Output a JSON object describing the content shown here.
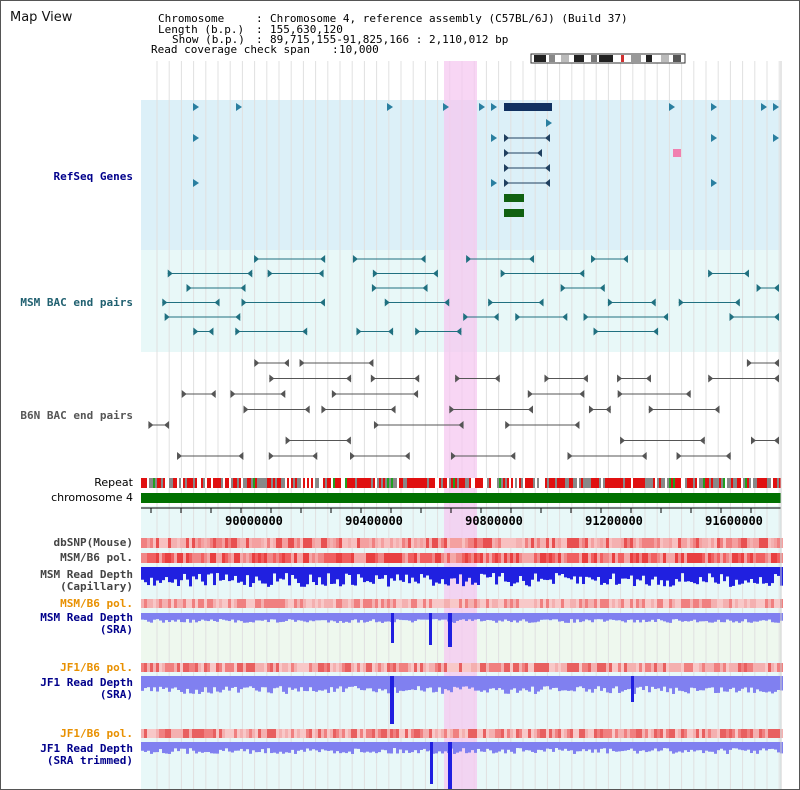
{
  "view_title": "Map View",
  "header": {
    "chromosome_key": "Chromosome",
    "chromosome_val": "Chromosome 4, reference assembly (C57BL/6J) (Build 37)",
    "length_key": "Length (b.p.)",
    "length_val": "155,630,120",
    "show_key": "Show (b.p.)",
    "show_val": "89,715,155-91,825,166 : 2,110,012 bp",
    "coverage_key": "Read coverage check span",
    "coverage_val": "10,000"
  },
  "tracks": {
    "refseq": "RefSeq Genes",
    "msm_bac": "MSM BAC end pairs",
    "b6n_bac": "B6N BAC end pairs",
    "repeat": "Repeat",
    "chromosome": "chromosome 4",
    "dbsnp": "dbSNP(Mouse)",
    "msm_b6_pol_1": "MSM/B6 pol.",
    "msm_depth_cap_1": "MSM Read Depth",
    "msm_depth_cap_2": "(Capillary)",
    "msm_b6_pol_2": "MSM/B6 pol.",
    "msm_depth_sra_1": "MSM Read Depth",
    "msm_depth_sra_2": "(SRA)",
    "jf1_b6_pol_1": "JF1/B6 pol.",
    "jf1_depth_sra_1": "JF1 Read Depth",
    "jf1_depth_sra_2": "(SRA)",
    "jf1_b6_pol_2": "JF1/B6 pol.",
    "jf1_depth_trim_1": "JF1 Read Depth",
    "jf1_depth_trim_2": "(SRA trimmed)"
  },
  "axis": {
    "ticks": [
      "90000000",
      "90400000",
      "90800000",
      "91200000",
      "91600000"
    ]
  },
  "colors": {
    "refseq_bg": "#dcf0f8",
    "bac_bg": "#e8f8f8",
    "highlight": "#f5c8f0",
    "gene_dark": "#103060",
    "gene_green": "#106010",
    "bac_teal": "#207080",
    "chromosome_green": "#007000",
    "depth_blue": "#2020e0",
    "depth_light": "#8080f0",
    "label_blue": "#00008b",
    "label_orange": "#e89000",
    "label_teal": "#206070"
  }
}
